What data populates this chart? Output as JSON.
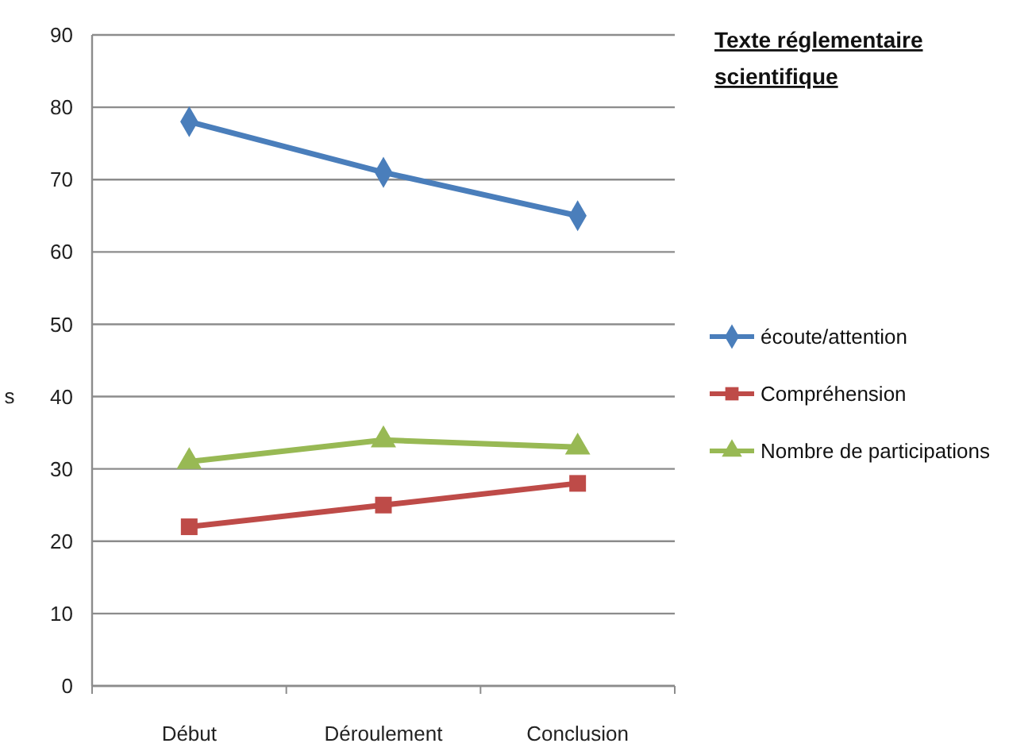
{
  "chart_data": {
    "type": "line",
    "title": "Texte réglementaire scientifique",
    "ylabel": "s",
    "categories": [
      "Début",
      "Déroulement",
      "Conclusion"
    ],
    "series": [
      {
        "name": "écoute/attention",
        "color": "#4a7ebb",
        "values": [
          78,
          71,
          65
        ],
        "marker": "diamond"
      },
      {
        "name": "Compréhension",
        "color": "#be4b48",
        "values": [
          22,
          25,
          28
        ],
        "marker": "square"
      },
      {
        "name": "Nombre de participations",
        "color": "#98b954",
        "values": [
          31,
          34,
          33
        ],
        "marker": "triangle"
      }
    ],
    "ylim": [
      0,
      90
    ],
    "yticks": [
      0,
      10,
      20,
      30,
      40,
      50,
      60,
      70,
      80,
      90
    ],
    "grid": "y",
    "legend": "right"
  }
}
